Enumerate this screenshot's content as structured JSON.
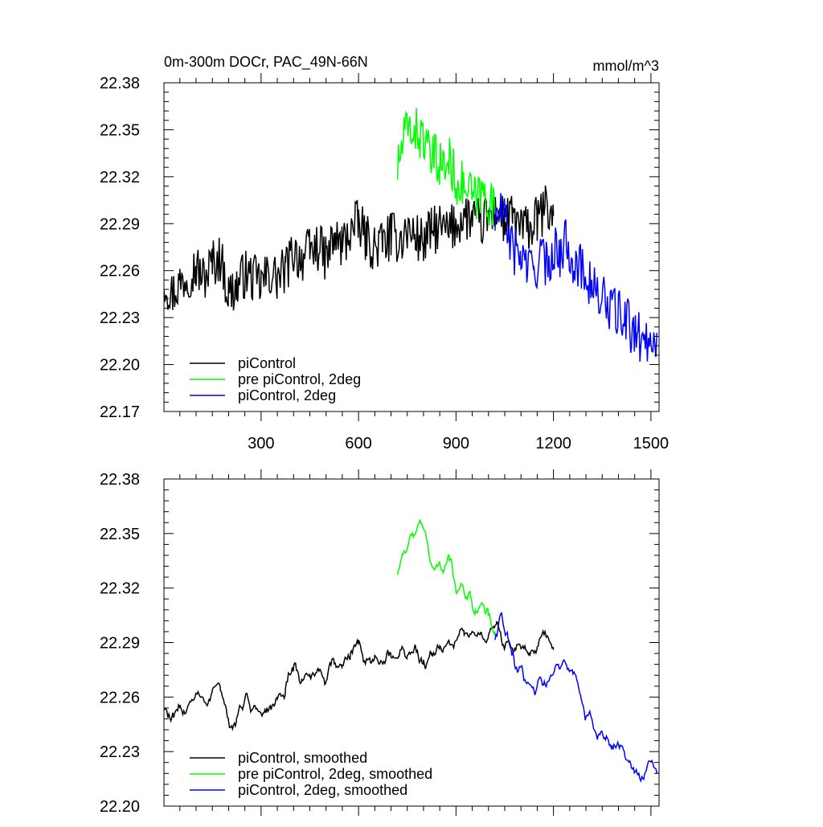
{
  "chart_data": [
    {
      "type": "line",
      "title": "0m-300m DOCr, PAC_49N-66N",
      "units": "mmol/m^3",
      "xlabel": "",
      "ylabel": "",
      "xlim": [
        1,
        1525
      ],
      "ylim": [
        22.17,
        22.38
      ],
      "xticks": [
        300,
        600,
        900,
        1200,
        1500
      ],
      "xtick_labels": [
        "300",
        "600",
        "900",
        "1200",
        "1500"
      ],
      "yticks": [
        22.17,
        22.2,
        22.23,
        22.26,
        22.29,
        22.32,
        22.35,
        22.38
      ],
      "ytick_labels": [
        "22.17",
        "22.20",
        "22.23",
        "22.26",
        "22.29",
        "22.32",
        "22.35",
        "22.38"
      ],
      "legend_position": "bottom-left",
      "series": [
        {
          "name": "piControl",
          "color": "#000000",
          "x": [
            1,
            25,
            50,
            75,
            100,
            125,
            150,
            175,
            200,
            225,
            250,
            275,
            300,
            325,
            350,
            375,
            400,
            425,
            450,
            475,
            500,
            525,
            550,
            575,
            600,
            625,
            650,
            675,
            700,
            725,
            750,
            775,
            800,
            825,
            850,
            875,
            900,
            925,
            950,
            975,
            1000,
            1025,
            1050,
            1075,
            1100,
            1125,
            1150,
            1175,
            1200
          ],
          "values": [
            22.255,
            22.245,
            22.252,
            22.258,
            22.262,
            22.255,
            22.265,
            22.268,
            22.245,
            22.25,
            22.258,
            22.255,
            22.252,
            22.258,
            22.255,
            22.26,
            22.272,
            22.268,
            22.272,
            22.275,
            22.268,
            22.28,
            22.276,
            22.285,
            22.29,
            22.28,
            22.275,
            22.278,
            22.282,
            22.28,
            22.285,
            22.282,
            22.278,
            22.285,
            22.288,
            22.284,
            22.29,
            22.295,
            22.293,
            22.29,
            22.294,
            22.3,
            22.29,
            22.294,
            22.288,
            22.286,
            22.292,
            22.3,
            22.295
          ]
        },
        {
          "name": "pre piControl, 2deg",
          "color": "#00ff00",
          "x": [
            720,
            740,
            760,
            780,
            800,
            820,
            840,
            860,
            880,
            900,
            920,
            940,
            960,
            980,
            1000,
            1020
          ],
          "values": [
            22.325,
            22.345,
            22.352,
            22.348,
            22.345,
            22.33,
            22.332,
            22.326,
            22.33,
            22.318,
            22.314,
            22.31,
            22.305,
            22.31,
            22.305,
            22.296
          ]
        },
        {
          "name": "piControl, 2deg",
          "color": "#0000ff",
          "x": [
            1020,
            1040,
            1060,
            1080,
            1100,
            1120,
            1140,
            1160,
            1180,
            1200,
            1220,
            1240,
            1260,
            1280,
            1300,
            1320,
            1340,
            1360,
            1380,
            1400,
            1420,
            1440,
            1460,
            1480,
            1500,
            1520
          ],
          "values": [
            22.292,
            22.298,
            22.285,
            22.272,
            22.27,
            22.262,
            22.26,
            22.27,
            22.262,
            22.275,
            22.27,
            22.28,
            22.268,
            22.262,
            22.258,
            22.25,
            22.243,
            22.24,
            22.235,
            22.232,
            22.23,
            22.222,
            22.218,
            22.215,
            22.218,
            22.22
          ]
        }
      ]
    },
    {
      "type": "line",
      "title": "",
      "xlabel": "",
      "ylabel": "",
      "xlim": [
        1,
        1525
      ],
      "ylim": [
        22.2,
        22.38
      ],
      "xticks": [
        300,
        600,
        900,
        1200,
        1500
      ],
      "yticks": [
        22.2,
        22.23,
        22.26,
        22.29,
        22.32,
        22.35,
        22.38
      ],
      "ytick_labels": [
        "22.20",
        "22.23",
        "22.26",
        "22.29",
        "22.32",
        "22.35",
        "22.38"
      ],
      "legend_position": "bottom-left",
      "series": [
        {
          "name": "piControl, smoothed",
          "color": "#000000",
          "x": [
            1,
            25,
            50,
            75,
            100,
            125,
            150,
            175,
            200,
            225,
            250,
            275,
            300,
            325,
            350,
            375,
            400,
            425,
            450,
            475,
            500,
            525,
            550,
            575,
            600,
            625,
            650,
            675,
            700,
            725,
            750,
            775,
            800,
            825,
            850,
            875,
            900,
            925,
            950,
            975,
            1000,
            1025,
            1050,
            1075,
            1100,
            1125,
            1150,
            1175,
            1200
          ],
          "values": [
            22.258,
            22.245,
            22.25,
            22.258,
            22.262,
            22.255,
            22.265,
            22.266,
            22.24,
            22.25,
            22.258,
            22.255,
            22.25,
            22.255,
            22.255,
            22.262,
            22.275,
            22.27,
            22.272,
            22.276,
            22.27,
            22.28,
            22.276,
            22.286,
            22.29,
            22.282,
            22.276,
            22.278,
            22.283,
            22.282,
            22.286,
            22.283,
            22.28,
            22.286,
            22.289,
            22.285,
            22.292,
            22.298,
            22.295,
            22.292,
            22.296,
            22.298,
            22.288,
            22.292,
            22.286,
            22.284,
            22.29,
            22.296,
            22.288
          ]
        },
        {
          "name": "pre piControl, 2deg, smoothed",
          "color": "#00ff00",
          "x": [
            720,
            740,
            760,
            780,
            800,
            820,
            840,
            860,
            880,
            900,
            920,
            940,
            960,
            980,
            1000,
            1020
          ],
          "values": [
            22.328,
            22.343,
            22.35,
            22.348,
            22.352,
            22.338,
            22.335,
            22.33,
            22.34,
            22.322,
            22.318,
            22.314,
            22.305,
            22.312,
            22.306,
            22.292
          ]
        },
        {
          "name": "piControl, 2deg, smoothed",
          "color": "#0000ff",
          "x": [
            1020,
            1040,
            1060,
            1080,
            1100,
            1120,
            1140,
            1160,
            1180,
            1200,
            1220,
            1240,
            1260,
            1280,
            1300,
            1320,
            1340,
            1360,
            1380,
            1400,
            1420,
            1440,
            1460,
            1480,
            1500,
            1520
          ],
          "values": [
            22.292,
            22.305,
            22.288,
            22.276,
            22.272,
            22.265,
            22.262,
            22.272,
            22.264,
            22.277,
            22.272,
            22.282,
            22.27,
            22.262,
            22.252,
            22.243,
            22.238,
            22.236,
            22.232,
            22.232,
            22.228,
            22.22,
            22.218,
            22.215,
            22.22,
            22.222
          ]
        }
      ]
    }
  ]
}
